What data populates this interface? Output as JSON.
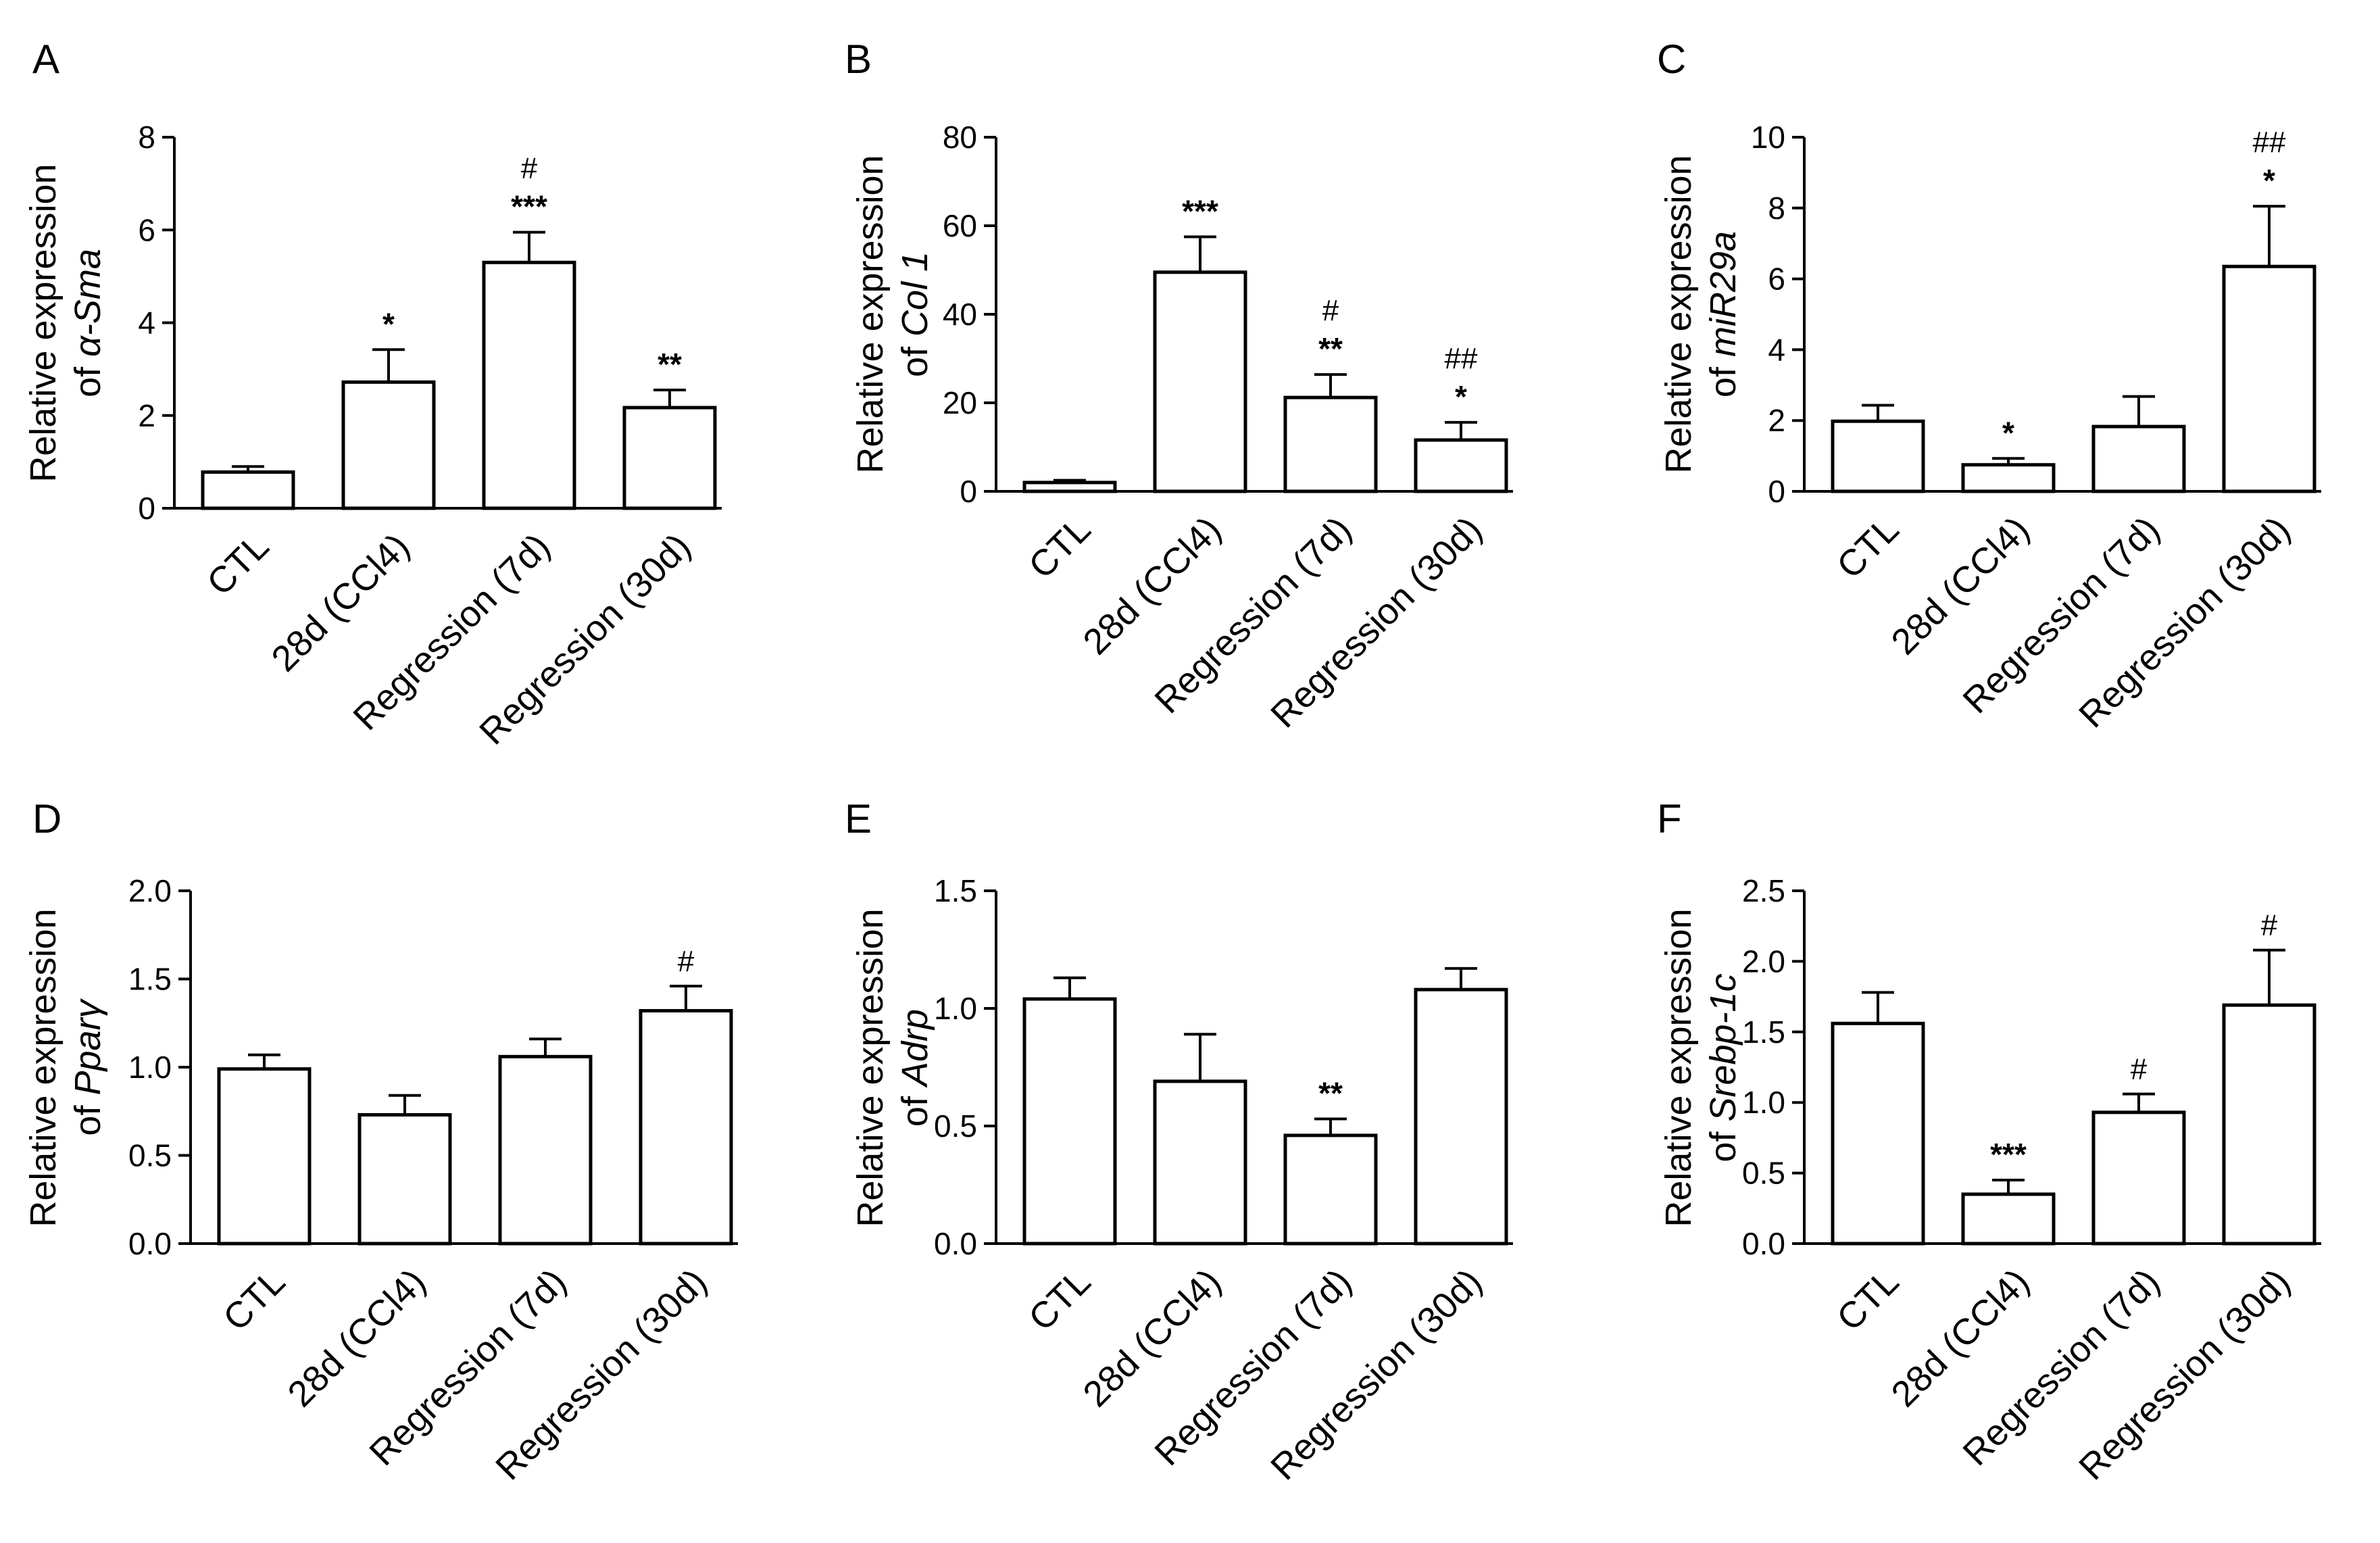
{
  "figure": {
    "chart_data": [
      {
        "type": "bar",
        "panel": "A",
        "ylabel_prefix": "Relative expression",
        "ylabel_of": "of ",
        "ylabel_gene": "α-Sma",
        "ylim": [
          0,
          8
        ],
        "yticks": [
          "0",
          "2",
          "4",
          "6",
          "8"
        ],
        "ytick_values": [
          0,
          2,
          4,
          6,
          8
        ],
        "categories": [
          "CTL",
          "28d (CCl4)",
          "Regression (7d)",
          "Regression (30d)"
        ],
        "values": [
          0.78,
          2.72,
          5.3,
          2.17
        ],
        "errors": [
          0.12,
          0.7,
          0.65,
          0.38
        ],
        "annotations": [
          {
            "category": 1,
            "lines": [
              "*"
            ]
          },
          {
            "category": 2,
            "lines": [
              "#",
              "***"
            ]
          },
          {
            "category": 3,
            "lines": [
              "**"
            ]
          }
        ]
      },
      {
        "type": "bar",
        "panel": "B",
        "ylabel_prefix": "Relative expression",
        "ylabel_of": "of ",
        "ylabel_gene": "Col 1",
        "ylim": [
          0,
          80
        ],
        "yticks": [
          "0",
          "20",
          "40",
          "60",
          "80"
        ],
        "ytick_values": [
          0,
          20,
          40,
          60,
          80
        ],
        "categories": [
          "CTL",
          "28d (CCl4)",
          "Regression (7d)",
          "Regression (30d)"
        ],
        "values": [
          2,
          49.5,
          21.2,
          11.6
        ],
        "errors": [
          0.5,
          8,
          5.2,
          4
        ],
        "annotations": [
          {
            "category": 1,
            "lines": [
              "***"
            ]
          },
          {
            "category": 2,
            "lines": [
              "#",
              "**"
            ]
          },
          {
            "category": 3,
            "lines": [
              "##",
              "*"
            ]
          }
        ]
      },
      {
        "type": "bar",
        "panel": "C",
        "ylabel_prefix": "Relative expression",
        "ylabel_of": "of ",
        "ylabel_gene": "miR29a",
        "ylim": [
          0,
          10
        ],
        "yticks": [
          "0",
          "2",
          "4",
          "6",
          "8",
          "10"
        ],
        "ytick_values": [
          0,
          2,
          4,
          6,
          8,
          10
        ],
        "categories": [
          "CTL",
          "28d (CCl4)",
          "Regression (7d)",
          "Regression (30d)"
        ],
        "values": [
          1.98,
          0.75,
          1.83,
          6.35
        ],
        "errors": [
          0.45,
          0.18,
          0.85,
          1.7
        ],
        "annotations": [
          {
            "category": 1,
            "lines": [
              "*"
            ]
          },
          {
            "category": 3,
            "lines": [
              "##",
              "*"
            ]
          }
        ]
      },
      {
        "type": "bar",
        "panel": "D",
        "ylabel_prefix": "Relative expression",
        "ylabel_of": "of ",
        "ylabel_gene": "Pparγ",
        "ylim": [
          0,
          2
        ],
        "yticks": [
          "0.0",
          "0.5",
          "1.0",
          "1.5",
          "2.0"
        ],
        "ytick_values": [
          0,
          0.5,
          1,
          1.5,
          2
        ],
        "categories": [
          "CTL",
          "28d (CCl4)",
          "Regression (7d)",
          "Regression (30d)"
        ],
        "values": [
          0.99,
          0.73,
          1.06,
          1.32
        ],
        "errors": [
          0.08,
          0.11,
          0.1,
          0.14
        ],
        "annotations": [
          {
            "category": 3,
            "lines": [
              "#"
            ]
          }
        ]
      },
      {
        "type": "bar",
        "panel": "E",
        "ylabel_prefix": "Relative expression",
        "ylabel_of": "of ",
        "ylabel_gene": "Adrp",
        "ylim": [
          0,
          1.5
        ],
        "yticks": [
          "0.0",
          "0.5",
          "1.0",
          "1.5"
        ],
        "ytick_values": [
          0,
          0.5,
          1,
          1.5
        ],
        "categories": [
          "CTL",
          "28d (CCl4)",
          "Regression (7d)",
          "Regression (30d)"
        ],
        "values": [
          1.04,
          0.69,
          0.46,
          1.08
        ],
        "errors": [
          0.09,
          0.2,
          0.07,
          0.09
        ],
        "annotations": [
          {
            "category": 2,
            "lines": [
              "**"
            ]
          }
        ]
      },
      {
        "type": "bar",
        "panel": "F",
        "ylabel_prefix": "Relative expression",
        "ylabel_of": "of ",
        "ylabel_gene": "Srebp-1c",
        "ylim": [
          0,
          2.5
        ],
        "yticks": [
          "0.0",
          "0.5",
          "1.0",
          "1.5",
          "2.0",
          "2.5"
        ],
        "ytick_values": [
          0,
          0.5,
          1,
          1.5,
          2,
          2.5
        ],
        "categories": [
          "CTL",
          "28d (CCl4)",
          "Regression (7d)",
          "Regression (30d)"
        ],
        "values": [
          1.56,
          0.35,
          0.93,
          1.69
        ],
        "errors": [
          0.22,
          0.1,
          0.13,
          0.39
        ],
        "annotations": [
          {
            "category": 1,
            "lines": [
              "***"
            ]
          },
          {
            "category": 2,
            "lines": [
              "#"
            ]
          },
          {
            "category": 3,
            "lines": [
              "#"
            ]
          }
        ]
      }
    ]
  }
}
